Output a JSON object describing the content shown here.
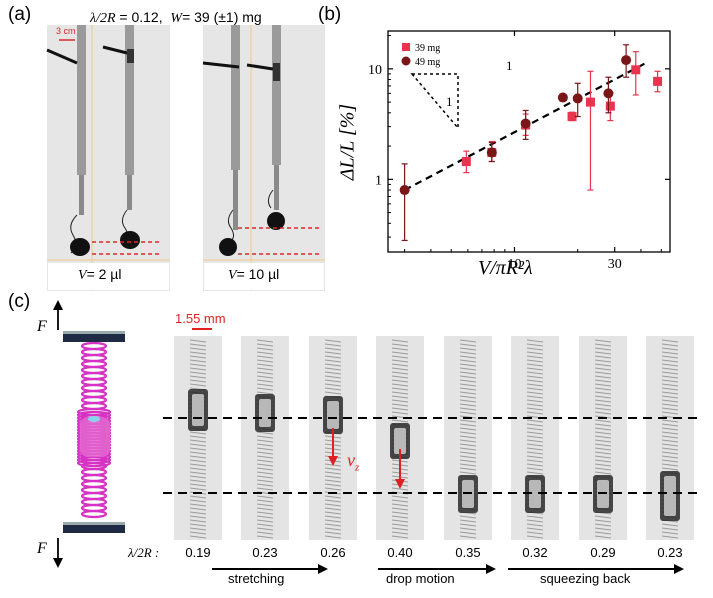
{
  "panel_a": {
    "label": "(a)",
    "header_ratio": "λ/2R",
    "header_ratio_value": "= 0.12,",
    "header_weight": "W",
    "header_weight_value": "= 39 (±1) mg",
    "scale_label": "3 cm",
    "photo_left_caption_var": "V",
    "photo_left_caption_val": "= 2 µl",
    "photo_right_caption_var": "V",
    "photo_right_caption_val": "= 10 µl"
  },
  "panel_b": {
    "label": "(b)",
    "slope_run": "1",
    "slope_rise": "1",
    "xlabel": "V/πR²λ",
    "ylabel": "ΔL/L [%]"
  },
  "chart_data": {
    "type": "scatter",
    "xscale": "log",
    "yscale": "log",
    "xlim": [
      2.5,
      55
    ],
    "ylim": [
      0.22,
      22
    ],
    "x_ticks": [
      10,
      30
    ],
    "x_tick_labels": [
      "10",
      "30"
    ],
    "y_ticks": [
      1,
      10
    ],
    "y_tick_labels": [
      "1",
      "10"
    ],
    "xlabel": "V/πR²λ",
    "ylabel": "ΔL/L [%]",
    "legend_position": "top-left",
    "series": [
      {
        "name": "39 mg",
        "marker": "square",
        "color": "#e8344e",
        "x": [
          5.9,
          7.8,
          11.3,
          18.8,
          23.0,
          28.6,
          37.8,
          48.0
        ],
        "y": [
          1.45,
          1.75,
          3.1,
          3.7,
          5.0,
          4.6,
          9.8,
          7.7
        ],
        "err_lo": [
          0.3,
          0.3,
          0.6,
          0.3,
          4.2,
          1.2,
          4.0,
          1.5
        ],
        "err_hi": [
          0.35,
          0.45,
          0.8,
          0.35,
          4.5,
          1.5,
          4.5,
          1.8
        ]
      },
      {
        "name": "49 mg",
        "marker": "circle",
        "color": "#7a1518",
        "x": [
          3.0,
          7.8,
          11.3,
          17.0,
          20.0,
          28.0,
          34.0
        ],
        "y": [
          0.8,
          1.75,
          3.2,
          5.5,
          5.4,
          6.0,
          12.0
        ],
        "err_lo": [
          0.52,
          0.3,
          0.9,
          0.0,
          1.7,
          2.0,
          3.6
        ],
        "err_hi": [
          0.58,
          0.4,
          1.0,
          0.0,
          2.0,
          2.4,
          4.5
        ]
      }
    ],
    "fit_line": {
      "x": [
        3.0,
        43.0
      ],
      "y": [
        0.8,
        11.5
      ],
      "style": "dashed"
    }
  },
  "panel_c": {
    "label": "(c)",
    "force_symbol": "F",
    "scale_label": "1.55 mm",
    "velocity_symbol": "v",
    "velocity_subscript": "z",
    "ratio_label": "λ/2R :",
    "ratios": [
      "0.19",
      "0.23",
      "0.26",
      "0.40",
      "0.35",
      "0.32",
      "0.29",
      "0.23"
    ],
    "phases": [
      "stretching",
      "drop motion",
      "squeezing back"
    ]
  },
  "colors": {
    "photo_border": "#d62a2a",
    "marker_39mg": "#e8344e",
    "marker_49mg": "#7a1518",
    "spring_pink": "#d633c4",
    "accent_red": "#e02020"
  }
}
